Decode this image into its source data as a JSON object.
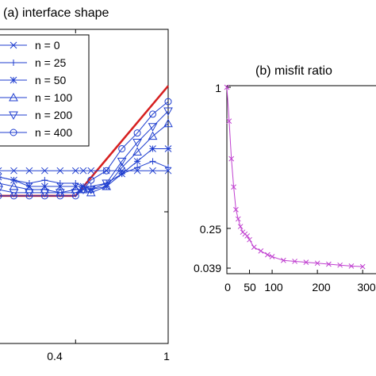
{
  "chart_data": [
    {
      "type": "line",
      "title": "(a) interface shape",
      "xlabel": "",
      "ylabel": "",
      "x_ticks": [
        "0.4",
        "1"
      ],
      "legend": {
        "placement": "top-left",
        "entries": [
          {
            "label": "n = 0",
            "marker": "x"
          },
          {
            "label": "n = 25",
            "marker": "plus"
          },
          {
            "label": "n = 50",
            "marker": "star"
          },
          {
            "label": "n = 100",
            "marker": "triangle-up"
          },
          {
            "label": "n = 200",
            "marker": "triangle-down"
          },
          {
            "label": "n = 400",
            "marker": "circle"
          }
        ]
      },
      "series_color": "#1f3ecf",
      "reference_color": "#d62020",
      "x": [
        -0.1,
        0.0,
        0.1,
        0.2,
        0.3,
        0.4,
        0.45,
        0.5,
        0.6,
        0.7,
        0.8,
        0.9,
        1.0
      ],
      "series": [
        {
          "name": "n = 0",
          "values": [
            0.55,
            0.55,
            0.55,
            0.55,
            0.55,
            0.55,
            0.55,
            0.55,
            0.55,
            0.55,
            0.55,
            0.55,
            0.55
          ]
        },
        {
          "name": "n = 25",
          "values": [
            0.53,
            0.52,
            0.51,
            0.52,
            0.51,
            0.51,
            0.5,
            0.5,
            0.51,
            0.54,
            0.56,
            0.58,
            0.56
          ]
        },
        {
          "name": "n = 50",
          "values": [
            0.53,
            0.52,
            0.5,
            0.5,
            0.5,
            0.5,
            0.5,
            0.49,
            0.5,
            0.54,
            0.58,
            0.62,
            0.62
          ]
        },
        {
          "name": "n = 100",
          "values": [
            0.51,
            0.5,
            0.49,
            0.49,
            0.48,
            0.49,
            0.49,
            0.48,
            0.5,
            0.56,
            0.61,
            0.66,
            0.7
          ]
        },
        {
          "name": "n = 200",
          "values": [
            0.49,
            0.48,
            0.48,
            0.48,
            0.48,
            0.48,
            0.49,
            0.49,
            0.51,
            0.58,
            0.64,
            0.69,
            0.74
          ]
        },
        {
          "name": "n = 400",
          "values": [
            0.47,
            0.47,
            0.47,
            0.47,
            0.47,
            0.47,
            0.49,
            0.52,
            0.55,
            0.62,
            0.67,
            0.73,
            0.77
          ]
        }
      ],
      "reference_line": [
        [
          -0.1,
          0.47
        ],
        [
          0.4,
          0.47
        ],
        [
          1.0,
          0.82
        ]
      ],
      "xlim": [
        -0.1,
        1.0
      ],
      "ylim": [
        0.0,
        1.0
      ],
      "grid": false
    },
    {
      "type": "line",
      "title": "(b) misfit ratio",
      "xlabel": "",
      "ylabel": "",
      "x_ticks": [
        "0",
        "50",
        "100",
        "200",
        "300"
      ],
      "y_ticks": [
        "1",
        "0.25",
        "0.039"
      ],
      "series_color": "#c040d0",
      "x": [
        0,
        5,
        10,
        15,
        20,
        25,
        30,
        35,
        40,
        45,
        50,
        60,
        75,
        90,
        100,
        125,
        150,
        175,
        200,
        225,
        250,
        275,
        300
      ],
      "series": [
        {
          "name": "",
          "values": [
            1.0,
            0.82,
            0.62,
            0.47,
            0.35,
            0.3,
            0.26,
            0.23,
            0.22,
            0.21,
            0.19,
            0.15,
            0.13,
            0.11,
            0.1,
            0.08,
            0.075,
            0.07,
            0.065,
            0.06,
            0.055,
            0.05,
            0.047
          ]
        }
      ],
      "xlim": [
        0,
        340
      ],
      "ylim": [
        0.039,
        1.0
      ],
      "grid": false
    }
  ]
}
